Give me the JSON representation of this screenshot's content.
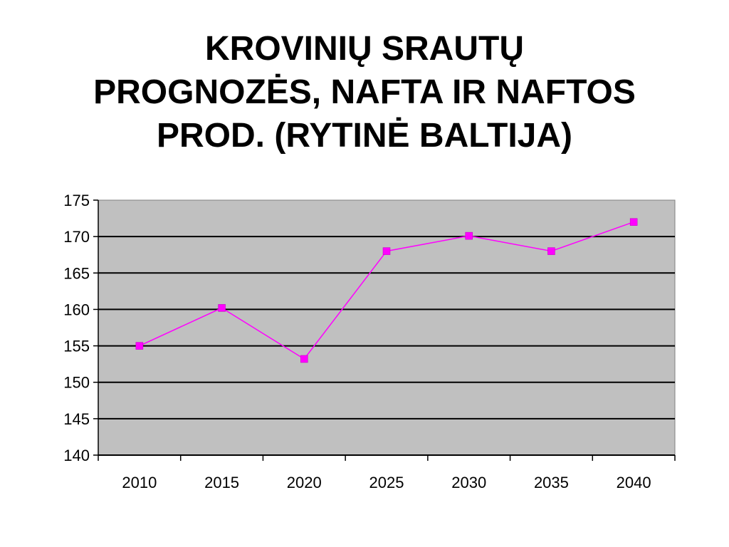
{
  "title_lines": [
    "KROVINIŲ SRAUTŲ",
    "PROGNOZĖS, NAFTA IR NAFTOS",
    "PROD. (RYTINĖ BALTIJA)"
  ],
  "chart_data": {
    "type": "line",
    "title": "KROVINIŲ SRAUTŲ PROGNOZĖS, NAFTA IR NAFTOS PROD. (RYTINĖ BALTIJA)",
    "xlabel": "",
    "ylabel": "",
    "categories": [
      "2010",
      "2015",
      "2020",
      "2025",
      "2030",
      "2035",
      "2040"
    ],
    "series": [
      {
        "values": [
          155,
          160.2,
          153.2,
          168,
          170.1,
          168,
          172
        ],
        "color": "#ff00ff",
        "marker": "square"
      }
    ],
    "ylim": [
      140,
      175
    ],
    "yticks": [
      140,
      145,
      150,
      155,
      160,
      165,
      170,
      175
    ],
    "grid": true,
    "legend": "none",
    "plot_background": "#c0c0c0"
  }
}
